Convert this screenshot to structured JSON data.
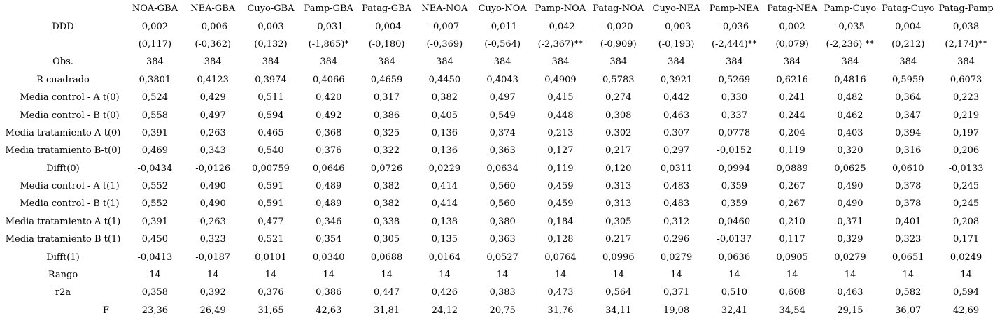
{
  "page": {
    "background_color": "#ffffff",
    "text_color": "#000000"
  },
  "table": {
    "kind": "regression-results",
    "columns": [
      "NOA-GBA",
      "NEA-GBA",
      "Cuyo-GBA",
      "Pamp-GBA",
      "Patag-GBA",
      "NEA-NOA",
      "Cuyo-NOA",
      "Pamp-NOA",
      "Patag-NOA",
      "Cuyo-NEA",
      "Pamp-NEA",
      "Patag-NEA",
      "Pamp-Cuyo",
      "Patag-Cuyo",
      "Patag-Pamp"
    ],
    "rows": [
      {
        "id": "ddd-coefficient",
        "label": "DDD",
        "label_align": "center",
        "values": [
          "0,002",
          "-0,006",
          "0,003",
          "-0,031",
          "-0,004",
          "-0,007",
          "-0,011",
          "-0,042",
          "-0,020",
          "-0,003",
          "-0,036",
          "0,002",
          "-0,035",
          "0,004",
          "0,038"
        ]
      },
      {
        "id": "ddd-t-statistics",
        "label": "",
        "label_align": "left",
        "values": [
          "(0,117)",
          "(-0,362)",
          "(0,132)",
          "(-1,865)*",
          "(-0,180)",
          "(-0,369)",
          "(-0,564)",
          "(-2,367)**",
          "(-0,909)",
          "(-0,193)",
          "(-2,444)**",
          "(0,079)",
          "(-2,236) **",
          "(0,212)",
          "(2,174)**"
        ]
      },
      {
        "id": "observations",
        "label": "Obs.",
        "label_align": "left",
        "values": [
          "384",
          "384",
          "384",
          "384",
          "384",
          "384",
          "384",
          "384",
          "384",
          "384",
          "384",
          "384",
          "384",
          "384",
          "384"
        ]
      },
      {
        "id": "r-squared",
        "label": "R cuadrado",
        "label_align": "left",
        "values": [
          "0,3801",
          "0,4123",
          "0,3974",
          "0,4066",
          "0,4659",
          "0,4450",
          "0,4043",
          "0,4909",
          "0,5783",
          "0,3921",
          "0,5269",
          "0,6216",
          "0,4816",
          "0,5959",
          "0,6073"
        ]
      },
      {
        "id": "media-control-a-t0",
        "label": "Media control - A t(0)",
        "label_align": "indent",
        "values": [
          "0,524",
          "0,429",
          "0,511",
          "0,420",
          "0,317",
          "0,382",
          "0,497",
          "0,415",
          "0,274",
          "0,442",
          "0,330",
          "0,241",
          "0,482",
          "0,364",
          "0,223"
        ]
      },
      {
        "id": "media-control-b-t0",
        "label": "Media control - B t(0)",
        "label_align": "indent",
        "values": [
          "0,558",
          "0,497",
          "0,594",
          "0,492",
          "0,386",
          "0,405",
          "0,549",
          "0,448",
          "0,308",
          "0,463",
          "0,337",
          "0,244",
          "0,462",
          "0,347",
          "0,219"
        ]
      },
      {
        "id": "media-tratamiento-a-t0",
        "label": "Media tratamiento A-t(0)",
        "label_align": "left",
        "values": [
          "0,391",
          "0,263",
          "0,465",
          "0,368",
          "0,325",
          "0,136",
          "0,374",
          "0,213",
          "0,302",
          "0,307",
          "0,0778",
          "0,204",
          "0,403",
          "0,394",
          "0,197"
        ]
      },
      {
        "id": "media-tratamiento-b-t0",
        "label": "Media tratamiento B-t(0)",
        "label_align": "left",
        "values": [
          "0,469",
          "0,343",
          "0,540",
          "0,376",
          "0,322",
          "0,136",
          "0,363",
          "0,127",
          "0,217",
          "0,297",
          "-0,0152",
          "0,119",
          "0,320",
          "0,316",
          "0,206"
        ]
      },
      {
        "id": "difft0",
        "label": "Difft(0)",
        "label_align": "left",
        "values": [
          "-0,0434",
          "-0,0126",
          "0,00759",
          "0,0646",
          "0,0726",
          "0,0229",
          "0,0634",
          "0,119",
          "0,120",
          "0,0311",
          "0,0994",
          "0,0889",
          "0,0625",
          "0,0610",
          "-0,0133"
        ]
      },
      {
        "id": "media-control-a-t1",
        "label": "Media control - A t(1)",
        "label_align": "indent",
        "values": [
          "0,552",
          "0,490",
          "0,591",
          "0,489",
          "0,382",
          "0,414",
          "0,560",
          "0,459",
          "0,313",
          "0,483",
          "0,359",
          "0,267",
          "0,490",
          "0,378",
          "0,245"
        ]
      },
      {
        "id": "media-control-b-t1",
        "label": "Media control - B t(1)",
        "label_align": "indent",
        "values": [
          "0,552",
          "0,490",
          "0,591",
          "0,489",
          "0,382",
          "0,414",
          "0,560",
          "0,459",
          "0,313",
          "0,483",
          "0,359",
          "0,267",
          "0,490",
          "0,378",
          "0,245"
        ]
      },
      {
        "id": "media-tratamiento-a-t1",
        "label": "Media tratamiento A t(1)",
        "label_align": "left",
        "values": [
          "0,391",
          "0,263",
          "0,477",
          "0,346",
          "0,338",
          "0,138",
          "0,380",
          "0,184",
          "0,305",
          "0,312",
          "0,0460",
          "0,210",
          "0,371",
          "0,401",
          "0,208"
        ]
      },
      {
        "id": "media-tratamiento-b-t1",
        "label": "Media tratamiento B t(1)",
        "label_align": "left",
        "values": [
          "0,450",
          "0,323",
          "0,521",
          "0,354",
          "0,305",
          "0,135",
          "0,363",
          "0,128",
          "0,217",
          "0,296",
          "-0,0137",
          "0,117",
          "0,329",
          "0,323",
          "0,171"
        ]
      },
      {
        "id": "difft1",
        "label": "Difft(1)",
        "label_align": "left",
        "values": [
          "-0,0413",
          "-0,0187",
          "0,0101",
          "0,0340",
          "0,0688",
          "0,0164",
          "0,0527",
          "0,0764",
          "0,0996",
          "0,0279",
          "0,0636",
          "0,0905",
          "0,0279",
          "0,0651",
          "0,0249"
        ]
      },
      {
        "id": "rango",
        "label": "Rango",
        "label_align": "left",
        "values": [
          "14",
          "14",
          "14",
          "14",
          "14",
          "14",
          "14",
          "14",
          "14",
          "14",
          "14",
          "14",
          "14",
          "14",
          "14"
        ]
      },
      {
        "id": "r2a",
        "label": "r2a",
        "label_align": "left",
        "values": [
          "0,358",
          "0,392",
          "0,376",
          "0,386",
          "0,447",
          "0,426",
          "0,383",
          "0,473",
          "0,564",
          "0,371",
          "0,510",
          "0,608",
          "0,463",
          "0,582",
          "0,594"
        ]
      },
      {
        "id": "f-statistic",
        "label": "F",
        "label_align": "f-pos",
        "values": [
          "23,36",
          "26,49",
          "31,65",
          "42,63",
          "31,81",
          "24,12",
          "20,75",
          "31,76",
          "34,11",
          "19,08",
          "32,41",
          "34,54",
          "29,15",
          "36,07",
          "42,69"
        ]
      }
    ]
  }
}
